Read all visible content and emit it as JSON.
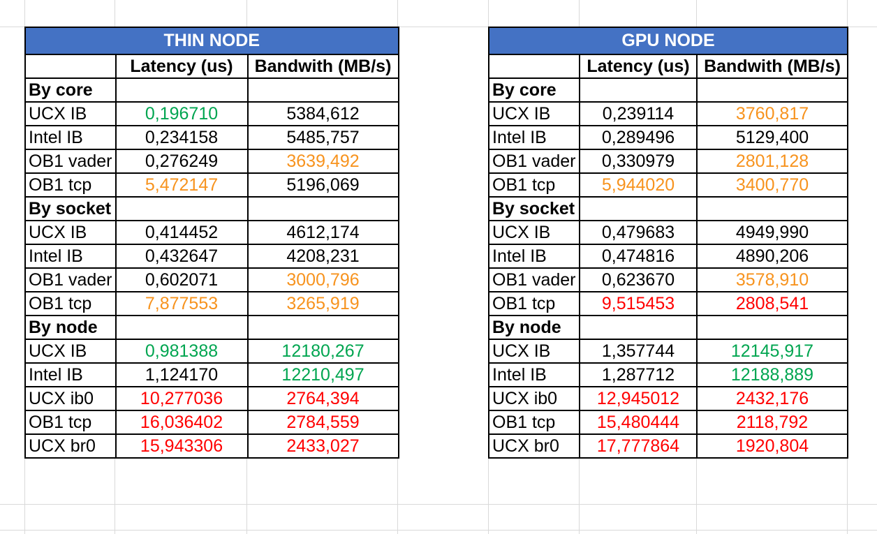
{
  "colors": {
    "header_bg": "#4472c4",
    "green": "#00a550",
    "orange": "#f7931e",
    "red": "#ff0000",
    "black": "#000000"
  },
  "tables": [
    {
      "title": "THIN NODE",
      "headers": [
        "",
        "Latency (us)",
        "Bandwith (MB/s)"
      ],
      "sections": [
        {
          "label": "By core",
          "rows": [
            {
              "name": "UCX IB",
              "latency": "0,196710",
              "lat_color": "green",
              "bandwidth": "5384,612",
              "bw_color": "black"
            },
            {
              "name": "Intel IB",
              "latency": "0,234158",
              "lat_color": "black",
              "bandwidth": "5485,757",
              "bw_color": "black"
            },
            {
              "name": "OB1 vader",
              "latency": "0,276249",
              "lat_color": "black",
              "bandwidth": "3639,492",
              "bw_color": "orange"
            },
            {
              "name": "OB1 tcp",
              "latency": "5,472147",
              "lat_color": "orange",
              "bandwidth": "5196,069",
              "bw_color": "black"
            }
          ]
        },
        {
          "label": "By socket",
          "rows": [
            {
              "name": "UCX IB",
              "latency": "0,414452",
              "lat_color": "black",
              "bandwidth": "4612,174",
              "bw_color": "black"
            },
            {
              "name": "Intel IB",
              "latency": "0,432647",
              "lat_color": "black",
              "bandwidth": "4208,231",
              "bw_color": "black"
            },
            {
              "name": "OB1 vader",
              "latency": "0,602071",
              "lat_color": "black",
              "bandwidth": "3000,796",
              "bw_color": "orange"
            },
            {
              "name": "OB1 tcp",
              "latency": "7,877553",
              "lat_color": "orange",
              "bandwidth": "3265,919",
              "bw_color": "orange"
            }
          ]
        },
        {
          "label": "By node",
          "rows": [
            {
              "name": "UCX IB",
              "latency": "0,981388",
              "lat_color": "green",
              "bandwidth": "12180,267",
              "bw_color": "green"
            },
            {
              "name": "Intel IB",
              "latency": "1,124170",
              "lat_color": "black",
              "bandwidth": "12210,497",
              "bw_color": "green"
            },
            {
              "name": "UCX ib0",
              "latency": "10,277036",
              "lat_color": "red",
              "bandwidth": "2764,394",
              "bw_color": "red"
            },
            {
              "name": "OB1 tcp",
              "latency": "16,036402",
              "lat_color": "red",
              "bandwidth": "2784,559",
              "bw_color": "red"
            },
            {
              "name": "UCX br0",
              "latency": "15,943306",
              "lat_color": "red",
              "bandwidth": "2433,027",
              "bw_color": "red"
            }
          ]
        }
      ]
    },
    {
      "title": "GPU NODE",
      "headers": [
        "",
        "Latency (us)",
        "Bandwith (MB/s)"
      ],
      "sections": [
        {
          "label": "By core",
          "rows": [
            {
              "name": "UCX IB",
              "latency": "0,239114",
              "lat_color": "black",
              "bandwidth": "3760,817",
              "bw_color": "orange"
            },
            {
              "name": "Intel IB",
              "latency": "0,289496",
              "lat_color": "black",
              "bandwidth": "5129,400",
              "bw_color": "black"
            },
            {
              "name": "OB1 vader",
              "latency": "0,330979",
              "lat_color": "black",
              "bandwidth": "2801,128",
              "bw_color": "orange"
            },
            {
              "name": "OB1 tcp",
              "latency": "5,944020",
              "lat_color": "orange",
              "bandwidth": "3400,770",
              "bw_color": "orange"
            }
          ]
        },
        {
          "label": "By socket",
          "rows": [
            {
              "name": "UCX IB",
              "latency": "0,479683",
              "lat_color": "black",
              "bandwidth": "4949,990",
              "bw_color": "black"
            },
            {
              "name": "Intel IB",
              "latency": "0,474816",
              "lat_color": "black",
              "bandwidth": "4890,206",
              "bw_color": "black"
            },
            {
              "name": "OB1 vader",
              "latency": "0,623670",
              "lat_color": "black",
              "bandwidth": "3578,910",
              "bw_color": "orange"
            },
            {
              "name": "OB1 tcp",
              "latency": "9,515453",
              "lat_color": "red",
              "bandwidth": "2808,541",
              "bw_color": "red"
            }
          ]
        },
        {
          "label": "By node",
          "rows": [
            {
              "name": "UCX IB",
              "latency": "1,357744",
              "lat_color": "black",
              "bandwidth": "12145,917",
              "bw_color": "green"
            },
            {
              "name": "Intel IB",
              "latency": "1,287712",
              "lat_color": "black",
              "bandwidth": "12188,889",
              "bw_color": "green"
            },
            {
              "name": "UCX ib0",
              "latency": "12,945012",
              "lat_color": "red",
              "bandwidth": "2432,176",
              "bw_color": "red"
            },
            {
              "name": "OB1 tcp",
              "latency": "15,480444",
              "lat_color": "red",
              "bandwidth": "2118,792",
              "bw_color": "red"
            },
            {
              "name": "UCX br0",
              "latency": "17,777864",
              "lat_color": "red",
              "bandwidth": "1920,804",
              "bw_color": "red"
            }
          ]
        }
      ]
    }
  ]
}
